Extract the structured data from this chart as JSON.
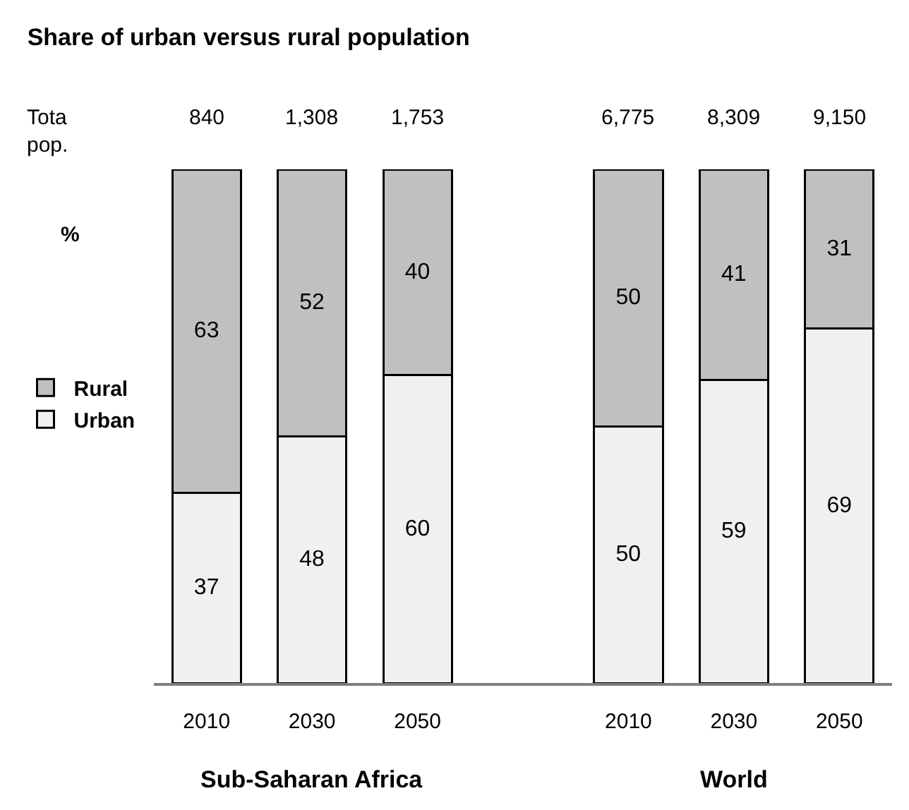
{
  "chart_data": {
    "type": "bar",
    "title": "Share of urban versus rural population",
    "ylabel": "%",
    "categories": [
      "2010",
      "2030",
      "2050",
      null,
      "2010",
      "2030",
      "2050"
    ],
    "series": [
      {
        "name": "Urban",
        "color": "#f0f0f0",
        "values": [
          37,
          48,
          60,
          null,
          50,
          59,
          69
        ]
      },
      {
        "name": "Rural",
        "color": "#c0c0c0",
        "values": [
          63,
          52,
          40,
          null,
          50,
          41,
          31
        ]
      }
    ],
    "stacked": true,
    "data_labels": true,
    "ylim": [
      0,
      100
    ],
    "tick_labels": "x",
    "legend": "left",
    "annotations": [
      "Tota\npop.",
      "840",
      "1,308",
      "1,753",
      "6,775",
      "8,309",
      "9,150",
      "Sub-Saharan Africa",
      "World"
    ]
  }
}
